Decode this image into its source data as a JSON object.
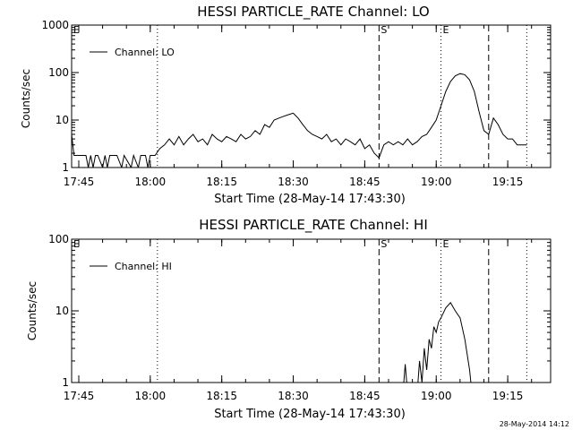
{
  "chart_data": [
    {
      "type": "line",
      "title": "HESSI PARTICLE_RATE Channel: LO",
      "xlabel": "Start Time (28-May-14 17:43:30)",
      "ylabel": "Counts/sec",
      "y_scale": "log",
      "xlim": [
        "17:43:30",
        "19:24:00"
      ],
      "ylim": [
        1,
        1000
      ],
      "x_ticks": [
        "17:45",
        "18:00",
        "18:15",
        "18:30",
        "18:45",
        "19:00",
        "19:15"
      ],
      "y_ticks": [
        "1",
        "10",
        "100",
        "1000"
      ],
      "legend": {
        "position": "top-left",
        "entries": [
          "Channel: LO"
        ]
      },
      "markers": [
        {
          "label": "E",
          "time": "17:43:30",
          "style": "none"
        },
        {
          "label": "",
          "time": "18:01:30",
          "style": "dotted"
        },
        {
          "label": "S",
          "time": "18:48:00",
          "style": "dashed"
        },
        {
          "label": "E",
          "time": "19:01:00",
          "style": "dotted"
        },
        {
          "label": "",
          "time": "19:11:00",
          "style": "dashed"
        },
        {
          "label": "",
          "time": "19:19:00",
          "style": "dotted"
        }
      ],
      "series": [
        {
          "name": "Channel: LO",
          "points": [
            [
              "17:43:30",
              5
            ],
            [
              "17:44:00",
              1.8
            ],
            [
              "17:45:00",
              1.8
            ],
            [
              "17:46:30",
              1.8
            ],
            [
              "17:47:00",
              1
            ],
            [
              "17:47:30",
              1.8
            ],
            [
              "17:48:00",
              1
            ],
            [
              "17:48:30",
              1.8
            ],
            [
              "17:49:00",
              1.8
            ],
            [
              "17:50:00",
              1
            ],
            [
              "17:50:30",
              1.8
            ],
            [
              "17:51:00",
              1
            ],
            [
              "17:51:30",
              1.8
            ],
            [
              "17:53:00",
              1.8
            ],
            [
              "17:54:00",
              1
            ],
            [
              "17:54:30",
              1.8
            ],
            [
              "17:56:00",
              1
            ],
            [
              "17:56:30",
              1.8
            ],
            [
              "17:57:30",
              1
            ],
            [
              "17:58:00",
              1.8
            ],
            [
              "17:59:00",
              1.8
            ],
            [
              "17:59:30",
              1
            ],
            [
              "18:00:00",
              1.8
            ],
            [
              "18:01:00",
              1.8
            ],
            [
              "18:02:00",
              2.5
            ],
            [
              "18:03:00",
              3
            ],
            [
              "18:04:00",
              4
            ],
            [
              "18:05:00",
              3
            ],
            [
              "18:06:00",
              4.5
            ],
            [
              "18:07:00",
              3
            ],
            [
              "18:08:00",
              4
            ],
            [
              "18:09:00",
              5
            ],
            [
              "18:10:00",
              3.5
            ],
            [
              "18:11:00",
              4
            ],
            [
              "18:12:00",
              3
            ],
            [
              "18:13:00",
              5
            ],
            [
              "18:14:00",
              4
            ],
            [
              "18:15:00",
              3.5
            ],
            [
              "18:16:00",
              4.5
            ],
            [
              "18:17:00",
              4
            ],
            [
              "18:18:00",
              3.5
            ],
            [
              "18:19:00",
              5
            ],
            [
              "18:20:00",
              4
            ],
            [
              "18:21:00",
              4.5
            ],
            [
              "18:22:00",
              6
            ],
            [
              "18:23:00",
              5
            ],
            [
              "18:24:00",
              8
            ],
            [
              "18:25:00",
              7
            ],
            [
              "18:26:00",
              10
            ],
            [
              "18:27:00",
              11
            ],
            [
              "18:28:00",
              12
            ],
            [
              "18:29:00",
              13
            ],
            [
              "18:30:00",
              14
            ],
            [
              "18:31:00",
              11
            ],
            [
              "18:32:00",
              8
            ],
            [
              "18:33:00",
              6
            ],
            [
              "18:34:00",
              5
            ],
            [
              "18:35:00",
              4.5
            ],
            [
              "18:36:00",
              4
            ],
            [
              "18:37:00",
              5
            ],
            [
              "18:38:00",
              3.5
            ],
            [
              "18:39:00",
              4
            ],
            [
              "18:40:00",
              3
            ],
            [
              "18:41:00",
              4
            ],
            [
              "18:42:00",
              3.5
            ],
            [
              "18:43:00",
              3
            ],
            [
              "18:44:00",
              4
            ],
            [
              "18:45:00",
              2.5
            ],
            [
              "18:46:00",
              3
            ],
            [
              "18:47:00",
              2
            ],
            [
              "18:48:00",
              1.6
            ],
            [
              "18:49:00",
              3
            ],
            [
              "18:50:00",
              3.5
            ],
            [
              "18:51:00",
              3
            ],
            [
              "18:52:00",
              3.5
            ],
            [
              "18:53:00",
              3
            ],
            [
              "18:54:00",
              4
            ],
            [
              "18:55:00",
              3
            ],
            [
              "18:56:00",
              3.5
            ],
            [
              "18:57:00",
              4.5
            ],
            [
              "18:58:00",
              5
            ],
            [
              "18:59:00",
              7
            ],
            [
              "19:00:00",
              10
            ],
            [
              "19:01:00",
              20
            ],
            [
              "19:02:00",
              40
            ],
            [
              "19:03:00",
              65
            ],
            [
              "19:04:00",
              85
            ],
            [
              "19:05:00",
              95
            ],
            [
              "19:06:00",
              90
            ],
            [
              "19:07:00",
              70
            ],
            [
              "19:08:00",
              40
            ],
            [
              "19:09:00",
              15
            ],
            [
              "19:10:00",
              6
            ],
            [
              "19:11:00",
              5
            ],
            [
              "19:12:00",
              11
            ],
            [
              "19:13:00",
              8
            ],
            [
              "19:14:00",
              5
            ],
            [
              "19:15:00",
              4
            ],
            [
              "19:16:00",
              4
            ],
            [
              "19:17:00",
              3
            ],
            [
              "19:18:00",
              3
            ],
            [
              "19:19:00",
              3
            ]
          ]
        }
      ]
    },
    {
      "type": "line",
      "title": "HESSI PARTICLE_RATE Channel: HI",
      "xlabel": "Start Time (28-May-14 17:43:30)",
      "ylabel": "Counts/sec",
      "y_scale": "log",
      "xlim": [
        "17:43:30",
        "19:24:00"
      ],
      "ylim": [
        1,
        100
      ],
      "x_ticks": [
        "17:45",
        "18:00",
        "18:15",
        "18:30",
        "18:45",
        "19:00",
        "19:15"
      ],
      "y_ticks": [
        "1",
        "10",
        "100"
      ],
      "legend": {
        "position": "top-left",
        "entries": [
          "Channel: HI"
        ]
      },
      "markers": [
        {
          "label": "E",
          "time": "17:43:30",
          "style": "none"
        },
        {
          "label": "",
          "time": "18:01:30",
          "style": "dotted"
        },
        {
          "label": "S",
          "time": "18:48:00",
          "style": "dashed"
        },
        {
          "label": "E",
          "time": "19:01:00",
          "style": "dotted"
        },
        {
          "label": "",
          "time": "19:11:00",
          "style": "dashed"
        },
        {
          "label": "",
          "time": "19:19:00",
          "style": "dotted"
        }
      ],
      "series": [
        {
          "name": "Channel: HI",
          "points": [
            [
              "18:53:00",
              0.7
            ],
            [
              "18:53:30",
              1.8
            ],
            [
              "18:54:00",
              0.7
            ],
            [
              "18:56:00",
              0.7
            ],
            [
              "18:56:30",
              2
            ],
            [
              "18:57:00",
              1
            ],
            [
              "18:57:30",
              3
            ],
            [
              "18:58:00",
              1.5
            ],
            [
              "18:58:30",
              4
            ],
            [
              "18:59:00",
              3
            ],
            [
              "18:59:30",
              6
            ],
            [
              "19:00:00",
              5
            ],
            [
              "19:00:30",
              7
            ],
            [
              "19:01:00",
              8
            ],
            [
              "19:02:00",
              11
            ],
            [
              "19:03:00",
              13
            ],
            [
              "19:04:00",
              10
            ],
            [
              "19:05:00",
              8
            ],
            [
              "19:06:00",
              4
            ],
            [
              "19:07:00",
              1.5
            ],
            [
              "19:07:30",
              0.7
            ]
          ]
        }
      ]
    }
  ],
  "timestamp": "28-May-2014 14:12"
}
